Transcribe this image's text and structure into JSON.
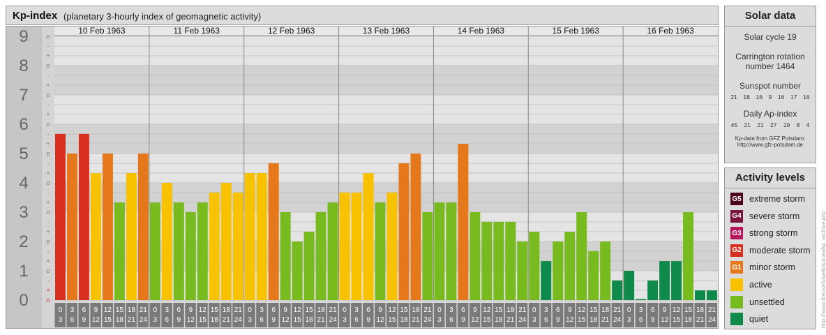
{
  "header": {
    "title": "Kp-index",
    "subtitle": "(planetary 3-hourly index of geomagnetic activity)"
  },
  "chart_data": {
    "type": "bar",
    "y_major_ticks": [
      "0",
      "1",
      "2",
      "3",
      "4",
      "5",
      "6",
      "7",
      "8",
      "9"
    ],
    "y_minor_labels": [
      "-",
      "o",
      "+"
    ],
    "ylim": [
      0,
      9.33
    ],
    "days": [
      "10 Feb 1963",
      "11 Feb 1963",
      "12 Feb 1963",
      "13 Feb 1963",
      "14 Feb 1963",
      "15 Feb 1963",
      "16 Feb 1963"
    ],
    "hour_ticks_top": [
      "0",
      "3",
      "6",
      "9",
      "12",
      "15",
      "18",
      "21"
    ],
    "hour_ticks_bottom": [
      "3",
      "6",
      "9",
      "12",
      "15",
      "18",
      "21",
      "24"
    ],
    "values": [
      5.67,
      5.0,
      5.67,
      4.33,
      5.0,
      3.33,
      4.33,
      5.0,
      3.33,
      4.0,
      3.33,
      3.0,
      3.33,
      3.67,
      4.0,
      3.67,
      4.33,
      4.33,
      4.67,
      3.0,
      2.0,
      2.33,
      3.0,
      3.33,
      3.67,
      3.67,
      4.33,
      3.33,
      3.67,
      4.67,
      5.0,
      3.0,
      3.33,
      3.33,
      5.33,
      3.0,
      2.67,
      2.67,
      2.67,
      2.0,
      2.33,
      1.33,
      2.0,
      2.33,
      3.0,
      1.67,
      2.0,
      0.67,
      1.0,
      0.0,
      0.67,
      1.33,
      1.33,
      3.0,
      0.33,
      0.33
    ],
    "level_colors": {
      "quiet": "#0f8a4a",
      "unsettled": "#78bb1e",
      "active": "#f8c200",
      "minor": "#e4781a",
      "moderate": "#d83020",
      "strong": "#b8155e",
      "severe": "#7a1240",
      "extreme": "#4a0618"
    }
  },
  "solar": {
    "title": "Solar data",
    "cycle": "Solar cycle 19",
    "carrington_1": "Carrington rotation",
    "carrington_2": "number 1464",
    "sunspot_title": "Sunspot number",
    "sunspot": [
      "21",
      "18",
      "16",
      "9",
      "16",
      "17",
      "16"
    ],
    "ap_title": "Daily Ap-index",
    "ap": [
      "45",
      "21",
      "21",
      "27",
      "19",
      "8",
      "4"
    ],
    "source_1": "Kp-data from  GFZ Potsdam:",
    "source_2": "http://www.gfz-potsdam.de"
  },
  "activity": {
    "title": "Activity levels",
    "items": [
      {
        "code": "G5",
        "label": "extreme storm",
        "color": "#4a0618"
      },
      {
        "code": "G4",
        "label": "severe storm",
        "color": "#7a1240"
      },
      {
        "code": "G3",
        "label": "strong storm",
        "color": "#b8155e"
      },
      {
        "code": "G2",
        "label": "moderate storm",
        "color": "#d83020"
      },
      {
        "code": "G1",
        "label": "minor storm",
        "color": "#e4781a"
      },
      {
        "code": "",
        "label": "active",
        "color": "#f8c200"
      },
      {
        "code": "",
        "label": "unsettled",
        "color": "#78bb1e"
      },
      {
        "code": "",
        "label": "quiet",
        "color": "#0f8a4a"
      }
    ]
  },
  "credit": "http://www.theusefulweb/aurora/kp_archive.php"
}
